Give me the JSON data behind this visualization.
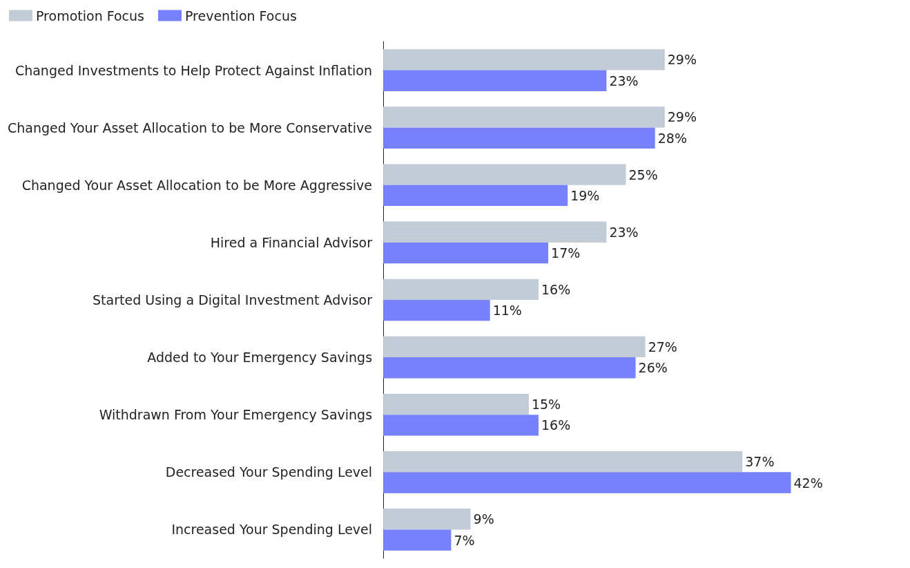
{
  "chart_data": {
    "type": "bar",
    "orientation": "horizontal",
    "legend": "top left",
    "categories": [
      "Changed Investments to Help Protect Against Inflation",
      "Changed Your Asset Allocation to be More Conservative",
      "Changed Your Asset Allocation to be More Aggressive",
      "Hired a Financial Advisor",
      "Started Using a Digital Investment Advisor",
      "Added to Your Emergency Savings",
      "Withdrawn From Your Emergency Savings",
      "Decreased Your Spending Level",
      "Increased Your Spending Level"
    ],
    "series": [
      {
        "name": "Promotion Focus",
        "color": "#c2ccd6",
        "values": [
          29,
          29,
          25,
          23,
          16,
          27,
          15,
          37,
          9
        ],
        "value_labels": [
          "29%",
          "29%",
          "25%",
          "23%",
          "16%",
          "27%",
          "15%",
          "37%",
          "9%"
        ]
      },
      {
        "name": "Prevention Focus",
        "color": "#7781fb",
        "values": [
          23,
          28,
          19,
          17,
          11,
          26,
          16,
          42,
          7
        ],
        "value_labels": [
          "23%",
          "28%",
          "19%",
          "17%",
          "11%",
          "26%",
          "16%",
          "42%",
          "7%"
        ]
      }
    ]
  }
}
